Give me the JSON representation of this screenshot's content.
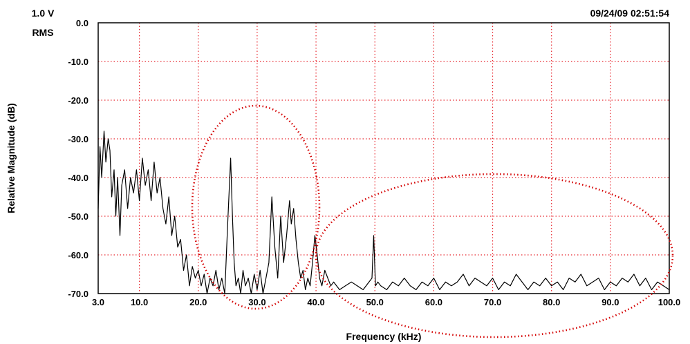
{
  "header": {
    "range_value": "1.0 V",
    "range_unit": "RMS",
    "timestamp": "09/24/09 02:51:54"
  },
  "colors": {
    "trace": "#000000",
    "grid": "#e8262d",
    "frame": "#000000",
    "annotation": "#d40000"
  },
  "chart_data": {
    "type": "line",
    "title": "",
    "xlabel": "Frequency (kHz)",
    "ylabel": "Relative Magnitude (dB)",
    "xlim": [
      3.0,
      100.0
    ],
    "ylim": [
      -70.0,
      0.0
    ],
    "x_ticks": [
      "3.0",
      "10.0",
      "20.0",
      "30.0",
      "40.0",
      "50.0",
      "60.0",
      "70.0",
      "80.0",
      "90.0",
      "100.0"
    ],
    "y_ticks": [
      "0.0",
      "-10.0",
      "-20.0",
      "-30.0",
      "-40.0",
      "-50.0",
      "-60.0",
      "-70.0"
    ],
    "grid": true,
    "series": [
      {
        "x": [
          3.0,
          3.3,
          3.6,
          4.0,
          4.3,
          4.7,
          5.0,
          5.3,
          5.7,
          6.0,
          6.3,
          6.7,
          7.0,
          7.5,
          8.0,
          8.5,
          9.0,
          9.5,
          10.0,
          10.5,
          11.0,
          11.5,
          12.0,
          12.5,
          13.0,
          13.5,
          14.0,
          14.5,
          15.0,
          15.5,
          16.0,
          16.5,
          17.0,
          17.5,
          18.0,
          18.5,
          19.0,
          19.5,
          20.0,
          20.5,
          21.0,
          21.5,
          22.0,
          22.5,
          23.0,
          23.5,
          24.0,
          24.5,
          25.0,
          25.5,
          25.8,
          26.1,
          26.4,
          26.8,
          27.2,
          27.6,
          28.0,
          28.5,
          29.0,
          29.5,
          30.0,
          30.5,
          31.0,
          31.5,
          32.0,
          32.5,
          33.0,
          33.5,
          34.0,
          34.5,
          35.0,
          35.5,
          35.8,
          36.2,
          36.6,
          37.0,
          37.4,
          37.8,
          38.2,
          38.6,
          39.0,
          39.4,
          39.8,
          40.2,
          40.6,
          41.0,
          41.5,
          42.0,
          42.5,
          43.0,
          44.0,
          45.0,
          46.0,
          47.0,
          48.0,
          49.0,
          49.5,
          49.8,
          50.1,
          50.5,
          51.0,
          52.0,
          53.0,
          54.0,
          55.0,
          56.0,
          57.0,
          58.0,
          59.0,
          60.0,
          61.0,
          62.0,
          63.0,
          64.0,
          65.0,
          66.0,
          67.0,
          68.0,
          69.0,
          70.0,
          71.0,
          72.0,
          73.0,
          74.0,
          75.0,
          76.0,
          77.0,
          78.0,
          79.0,
          80.0,
          81.0,
          82.0,
          83.0,
          84.0,
          85.0,
          86.0,
          87.0,
          88.0,
          89.0,
          90.0,
          91.0,
          92.0,
          93.0,
          94.0,
          95.0,
          96.0,
          97.0,
          98.0,
          99.0,
          100.0
        ],
        "y": [
          -48,
          -32,
          -40,
          -28,
          -36,
          -30,
          -33,
          -45,
          -38,
          -50,
          -40,
          -55,
          -42,
          -38,
          -48,
          -40,
          -44,
          -38,
          -46,
          -35,
          -42,
          -38,
          -46,
          -36,
          -44,
          -40,
          -48,
          -52,
          -45,
          -55,
          -50,
          -58,
          -56,
          -64,
          -60,
          -68,
          -63,
          -66,
          -64,
          -68,
          -65,
          -70,
          -66,
          -68,
          -64,
          -69,
          -66,
          -70,
          -52,
          -35,
          -50,
          -62,
          -68,
          -66,
          -70,
          -64,
          -68,
          -66,
          -70,
          -65,
          -69,
          -64,
          -70,
          -66,
          -62,
          -45,
          -58,
          -66,
          -50,
          -62,
          -55,
          -46,
          -52,
          -48,
          -56,
          -62,
          -66,
          -64,
          -69,
          -66,
          -68,
          -62,
          -55,
          -60,
          -66,
          -68,
          -64,
          -66,
          -68,
          -67,
          -69,
          -68,
          -67,
          -68,
          -69,
          -67,
          -66,
          -55,
          -68,
          -67,
          -68,
          -69,
          -67,
          -68,
          -66,
          -68,
          -69,
          -67,
          -68,
          -66,
          -69,
          -67,
          -68,
          -67,
          -65,
          -68,
          -66,
          -67,
          -68,
          -66,
          -69,
          -67,
          -68,
          -65,
          -67,
          -69,
          -67,
          -68,
          -66,
          -68,
          -67,
          -69,
          -66,
          -67,
          -65,
          -68,
          -67,
          -66,
          -69,
          -67,
          -68,
          -66,
          -67,
          -65,
          -68,
          -66,
          -69,
          -67,
          -68,
          -69
        ]
      }
    ]
  }
}
